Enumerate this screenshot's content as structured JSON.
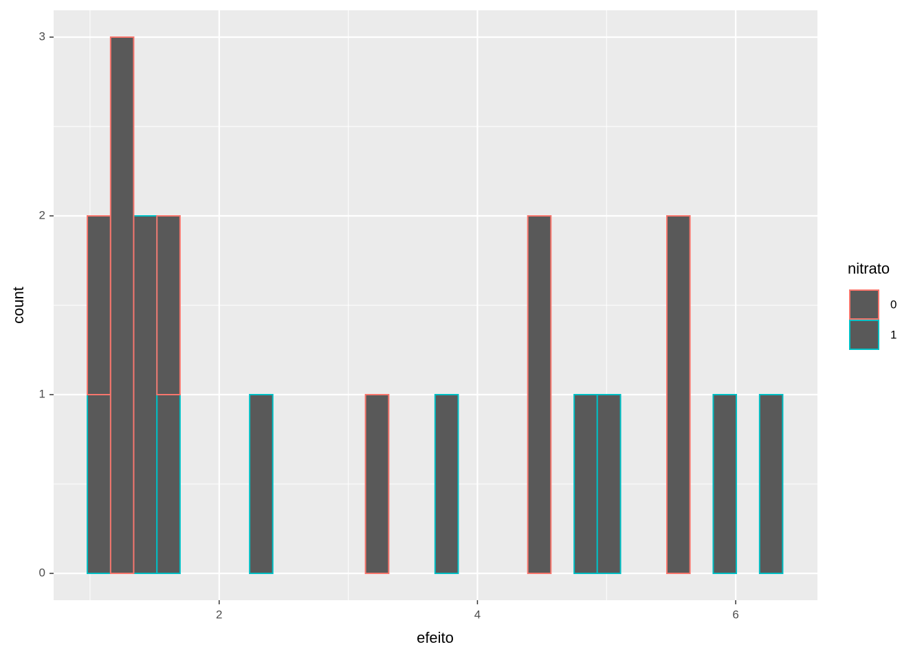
{
  "chart_data": {
    "type": "histogram",
    "x_label": "efeito",
    "y_label": "count",
    "legend_title": "nitrato",
    "bins": [
      0.979,
      1.159,
      1.338,
      1.518,
      1.697,
      1.877,
      2.056,
      2.236,
      2.415,
      2.595,
      2.774,
      2.954,
      3.133,
      3.313,
      3.492,
      3.672,
      3.851,
      4.031,
      4.21,
      4.39,
      4.569,
      4.749,
      4.928,
      5.108,
      5.287,
      5.467,
      5.646,
      5.826,
      6.005,
      6.185,
      6.364
    ],
    "fill": "#595959",
    "series": [
      {
        "name": "0",
        "color": "#F8766D",
        "values": [
          1,
          3,
          0,
          1,
          0,
          0,
          0,
          0,
          0,
          0,
          0,
          0,
          1,
          0,
          0,
          0,
          0,
          0,
          0,
          2,
          0,
          0,
          0,
          0,
          0,
          2,
          0,
          0,
          0,
          0
        ]
      },
      {
        "name": "1",
        "color": "#00BFC4",
        "values": [
          1,
          0,
          2,
          1,
          0,
          0,
          0,
          1,
          0,
          0,
          0,
          0,
          0,
          0,
          0,
          1,
          0,
          0,
          0,
          0,
          0,
          1,
          1,
          0,
          0,
          0,
          0,
          1,
          0,
          1
        ]
      }
    ],
    "stacked": true,
    "xlim": [
      0.718,
      6.633
    ],
    "ylim": [
      -0.15,
      3.15
    ],
    "xticks": [
      2,
      4,
      6
    ],
    "yticks": [
      0,
      1,
      2,
      3
    ],
    "grid": true,
    "legend": "right"
  }
}
